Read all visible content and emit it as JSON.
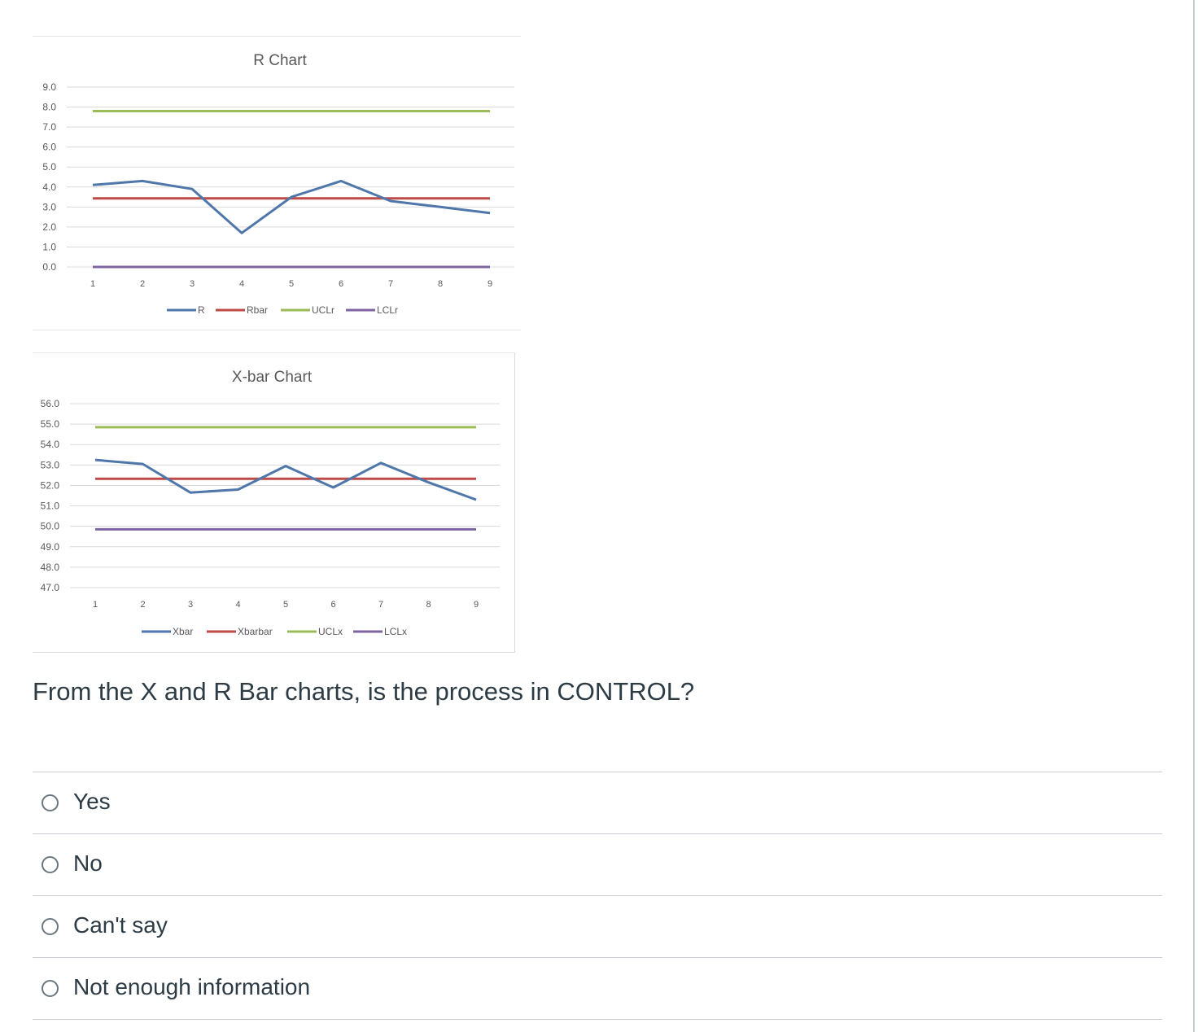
{
  "charts": [
    {
      "chart_data": {
        "type": "line",
        "title": "R Chart",
        "x": [
          1,
          2,
          3,
          4,
          5,
          6,
          7,
          8,
          9
        ],
        "series": [
          {
            "name": "R",
            "color": "#4f77a9",
            "values": [
              4.1,
              4.3,
              3.9,
              1.7,
              3.5,
              4.3,
              3.3,
              3.0,
              2.7
            ]
          },
          {
            "name": "Rbar",
            "color": "#be4b48",
            "values": [
              3.43,
              3.43,
              3.43,
              3.43,
              3.43,
              3.43,
              3.43,
              3.43,
              3.43
            ]
          },
          {
            "name": "UCLr",
            "color": "#9bbb59",
            "values": [
              7.8,
              7.8,
              7.8,
              7.8,
              7.8,
              7.8,
              7.8,
              7.8,
              7.8
            ]
          },
          {
            "name": "LCLr",
            "color": "#7e64a0",
            "values": [
              0,
              0,
              0,
              0,
              0,
              0,
              0,
              0,
              0
            ]
          }
        ],
        "yticks": [
          "9.0",
          "8.0",
          "7.0",
          "6.0",
          "5.0",
          "4.0",
          "3.0",
          "2.0",
          "1.0",
          "0.0"
        ],
        "ylim": [
          0,
          9
        ],
        "grid": true,
        "legend": "bottom"
      }
    },
    {
      "chart_data": {
        "type": "line",
        "title": "X-bar Chart",
        "x": [
          1,
          2,
          3,
          4,
          5,
          6,
          7,
          8,
          9
        ],
        "series": [
          {
            "name": "Xbar",
            "color": "#4f77a9",
            "values": [
              53.25,
              53.05,
              51.65,
              51.8,
              52.95,
              51.9,
              53.1,
              52.15,
              51.3
            ]
          },
          {
            "name": "Xbarbar",
            "color": "#be4b48",
            "values": [
              52.33,
              52.33,
              52.33,
              52.33,
              52.33,
              52.33,
              52.33,
              52.33,
              52.33
            ]
          },
          {
            "name": "UCLx",
            "color": "#9bbb59",
            "values": [
              54.85,
              54.85,
              54.85,
              54.85,
              54.85,
              54.85,
              54.85,
              54.85,
              54.85
            ]
          },
          {
            "name": "LCLx",
            "color": "#7e64a0",
            "values": [
              49.85,
              49.85,
              49.85,
              49.85,
              49.85,
              49.85,
              49.85,
              49.85,
              49.85
            ]
          }
        ],
        "yticks": [
          "56.0",
          "55.0",
          "54.0",
          "53.0",
          "52.0",
          "51.0",
          "50.0",
          "49.0",
          "48.0",
          "47.0"
        ],
        "ylim": [
          47,
          56
        ],
        "grid": true,
        "legend": "bottom"
      }
    }
  ],
  "question": {
    "text": "From the X and R Bar charts, is the process in CONTROL?"
  },
  "answers": [
    {
      "label": "Yes"
    },
    {
      "label": "No"
    },
    {
      "label": "Can't say"
    },
    {
      "label": "Not enough information"
    }
  ]
}
